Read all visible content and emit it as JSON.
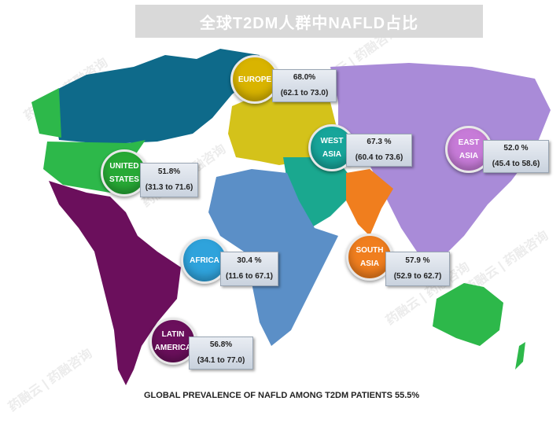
{
  "title": "全球T2DM人群中NAFLD占比",
  "footer": "GLOBAL PREVALENCE OF NAFLD AMONG T2DM PATIENTS 55.5%",
  "watermark": "药融云 | 药融咨询",
  "colors": {
    "canada": "#0e6a8a",
    "united_states": "#2db84a",
    "latin_america": "#6b0f5c",
    "europe": "#d4c21a",
    "east_asia": "#a98bd8",
    "west_asia": "#1aa88f",
    "south_asia": "#f07e1e",
    "africa": "#5b8fc7",
    "australia": "#2db84a"
  },
  "regions": [
    {
      "name": "EUROPE",
      "value": "68.0%",
      "ci": "(62.1 to 73.0)",
      "color": "#d9b400"
    },
    {
      "name": "WEST ASIA",
      "value": "67.3 %",
      "ci": "(60.4 to 73.6)",
      "color": "#17a59a"
    },
    {
      "name": "EAST ASIA",
      "value": "52.0 %",
      "ci": "(45.4 to 58.6)",
      "color": "#c77bd8"
    },
    {
      "name": "UNITED STATES",
      "value": "51.8%",
      "ci": "(31.3 to 71.6)",
      "color": "#27a935"
    },
    {
      "name": "AFRICA",
      "value": "30.4 %",
      "ci": "(11.6 to 67.1)",
      "color": "#2fa3dc"
    },
    {
      "name": "SOUTH ASIA",
      "value": "57.9 %",
      "ci": "(52.9 to 62.7)",
      "color": "#f07e1e"
    },
    {
      "name": "LATIN AMERICA",
      "value": "56.8%",
      "ci": "(34.1 to 77.0)",
      "color": "#6b0f5c"
    }
  ]
}
